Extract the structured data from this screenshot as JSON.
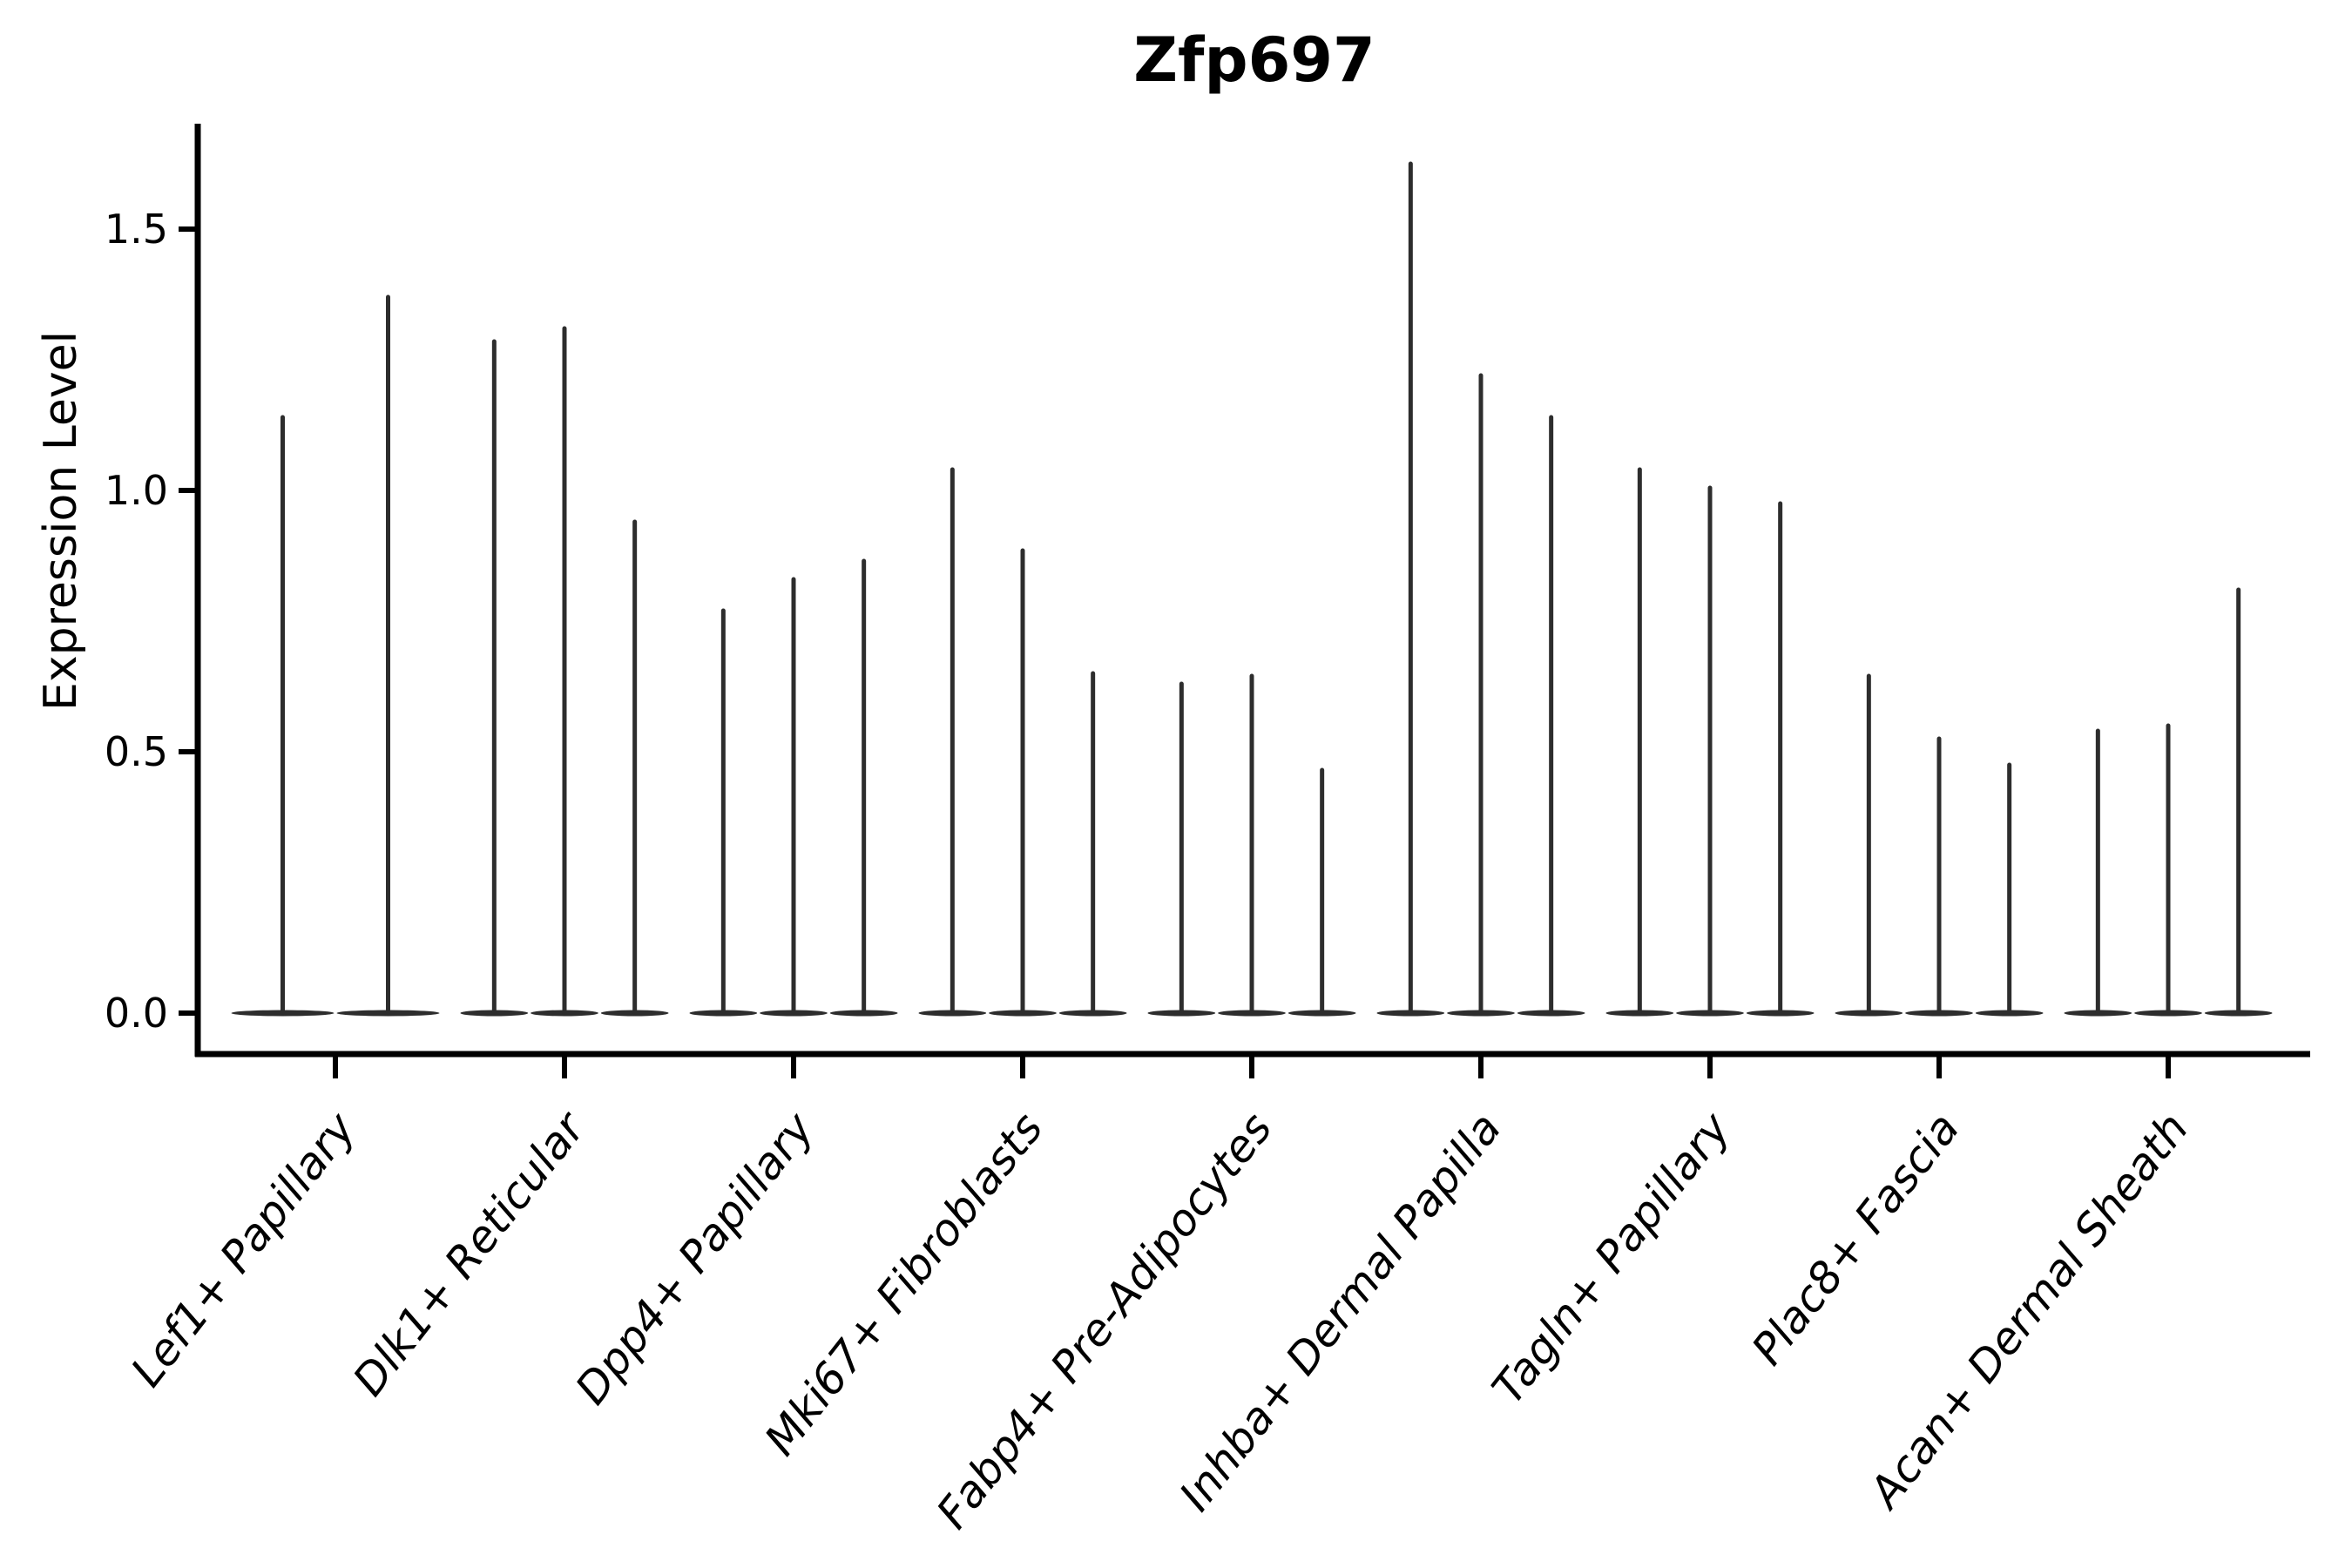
{
  "chart_data": {
    "type": "violin",
    "title": "Zfp697",
    "ylabel": "Expression Level",
    "xlabel": "",
    "ytick_labels": [
      "0.0",
      "0.5",
      "1.0",
      "1.5"
    ],
    "yticks": [
      0.0,
      0.5,
      1.0,
      1.5
    ],
    "ylim": [
      -0.08,
      1.71
    ],
    "legend": "none",
    "grid": false,
    "categories": [
      "Lef1+ Papillary",
      "Dlk1+ Reticular",
      "Dpp4+ Papillary",
      "Mki67+ Fibroblasts",
      "Fabp4+ Pre-Adipocytes",
      "Inhba+ Dermal Papilla",
      "Tagln+ Papillary",
      "Plac8+ Fascia",
      "Acan+ Dermal Sheath"
    ],
    "groups": [
      {
        "label": "Lef1+ Papillary",
        "violin_peaks": [
          1.14,
          1.37
        ]
      },
      {
        "label": "Dlk1+ Reticular",
        "violin_peaks": [
          1.285,
          1.31,
          0.94
        ]
      },
      {
        "label": "Dpp4+ Papillary",
        "violin_peaks": [
          0.77,
          0.83,
          0.865
        ]
      },
      {
        "label": "Mki67+ Fibroblasts",
        "violin_peaks": [
          1.04,
          0.885,
          0.65
        ]
      },
      {
        "label": "Fabp4+ Pre-Adipocytes",
        "violin_peaks": [
          0.63,
          0.645,
          0.465
        ]
      },
      {
        "label": "Inhba+ Dermal Papilla",
        "violin_peaks": [
          1.625,
          1.22,
          1.14
        ]
      },
      {
        "label": "Tagln+ Papillary",
        "violin_peaks": [
          1.04,
          1.005,
          0.975
        ]
      },
      {
        "label": "Plac8+ Fascia",
        "violin_peaks": [
          0.645,
          0.525,
          0.475
        ]
      },
      {
        "label": "Acan+ Dermal Sheath",
        "violin_peaks": [
          0.54,
          0.55,
          0.81
        ]
      }
    ],
    "violin_baseline_value": 0.0,
    "colors": {
      "violin_ink": "#2d2d2d",
      "axis": "#000000",
      "text": "#000000",
      "background": "#ffffff"
    }
  }
}
